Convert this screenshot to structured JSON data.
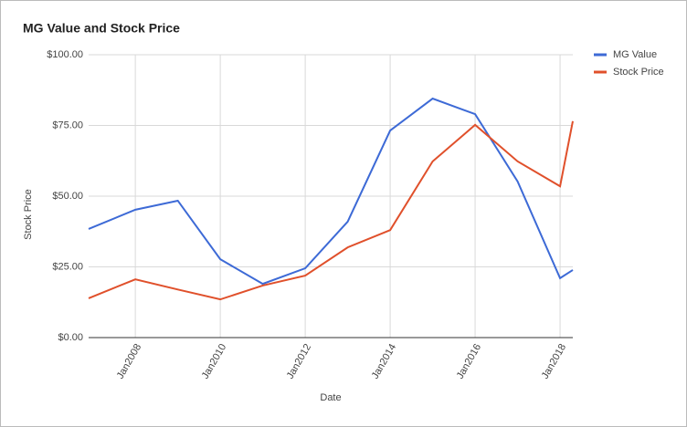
{
  "chart_data": {
    "type": "line",
    "title": "MG Value and Stock Price",
    "x_label": "Date",
    "y_label": "Stock Price",
    "x": [
      2006.9,
      2008,
      2009,
      2010,
      2011,
      2012,
      2013,
      2014,
      2015,
      2016,
      2017,
      2018,
      2018.3
    ],
    "series": [
      {
        "name": "MG Value",
        "color": "#3d6ad6",
        "values": [
          38.4,
          45.2,
          48.4,
          27.7,
          19,
          24.5,
          41,
          73.2,
          84.5,
          79,
          55.2,
          21,
          23.9
        ]
      },
      {
        "name": "Stock Price",
        "color": "#e0502b",
        "values": [
          13.9,
          20.6,
          17,
          13.5,
          18.4,
          21.9,
          31.9,
          38,
          62.3,
          75.2,
          62.3,
          53.5,
          76.5
        ]
      }
    ],
    "xlim": [
      2006.9,
      2018.3
    ],
    "xticks": [
      {
        "value": 2008,
        "label": "Jan2008"
      },
      {
        "value": 2010,
        "label": "Jan2010"
      },
      {
        "value": 2012,
        "label": "Jan2012"
      },
      {
        "value": 2014,
        "label": "Jan2014"
      },
      {
        "value": 2016,
        "label": "Jan2016"
      },
      {
        "value": 2018,
        "label": "Jan2018"
      }
    ],
    "ylim": [
      0,
      100
    ],
    "yticks": [
      {
        "value": 0,
        "label": "$0.00"
      },
      {
        "value": 25,
        "label": "$25.00"
      },
      {
        "value": 50,
        "label": "$50.00"
      },
      {
        "value": 75,
        "label": "$75.00"
      },
      {
        "value": 100,
        "label": "$100.00"
      }
    ],
    "grid": true,
    "legend": "right"
  }
}
